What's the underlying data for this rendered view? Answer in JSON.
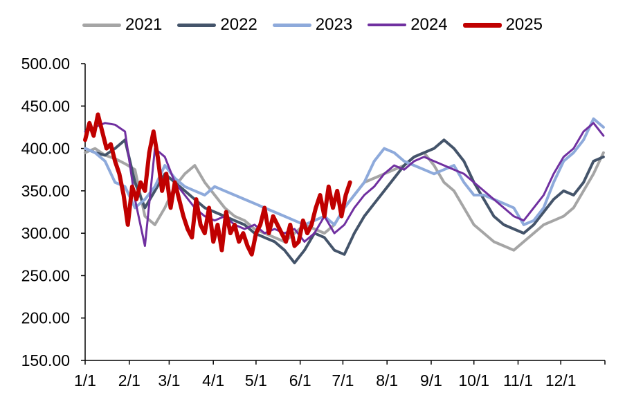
{
  "chart_data": {
    "type": "line",
    "title": "",
    "xlabel": "",
    "ylabel": "",
    "ylim": [
      150,
      500
    ],
    "yticks": [
      "150.00",
      "200.00",
      "250.00",
      "300.00",
      "350.00",
      "400.00",
      "450.00",
      "500.00"
    ],
    "ytick_values": [
      150,
      200,
      250,
      300,
      350,
      400,
      450,
      500
    ],
    "xticks": [
      "1/1",
      "2/1",
      "3/1",
      "4/1",
      "5/1",
      "6/1",
      "7/1",
      "8/1",
      "9/1",
      "10/1",
      "11/1",
      "12/1"
    ],
    "xtick_days": [
      0,
      31,
      59,
      90,
      120,
      151,
      181,
      212,
      243,
      273,
      304,
      334
    ],
    "x_unit": "day of year",
    "legend_position": "top",
    "grid": false,
    "series": [
      {
        "name": "2021",
        "color": "#a5a5a5",
        "width": 4,
        "x": [
          0,
          7,
          14,
          21,
          28,
          35,
          42,
          49,
          56,
          63,
          70,
          77,
          84,
          91,
          98,
          105,
          112,
          119,
          126,
          133,
          140,
          147,
          154,
          161,
          168,
          175,
          182,
          189,
          196,
          203,
          210,
          217,
          224,
          231,
          238,
          245,
          252,
          259,
          266,
          273,
          280,
          287,
          294,
          301,
          308,
          315,
          322,
          329,
          336,
          343,
          350,
          357,
          364
        ],
        "y": [
          395,
          400,
          392,
          388,
          382,
          375,
          320,
          310,
          330,
          355,
          370,
          380,
          360,
          345,
          330,
          320,
          315,
          305,
          300,
          295,
          290,
          300,
          310,
          305,
          300,
          310,
          330,
          345,
          360,
          365,
          370,
          375,
          380,
          390,
          395,
          380,
          360,
          350,
          330,
          310,
          300,
          290,
          285,
          280,
          290,
          300,
          310,
          315,
          320,
          330,
          350,
          370,
          395
        ]
      },
      {
        "name": "2022",
        "color": "#44546a",
        "width": 4,
        "x": [
          0,
          7,
          14,
          21,
          28,
          35,
          42,
          49,
          56,
          63,
          70,
          77,
          84,
          91,
          98,
          105,
          112,
          119,
          126,
          133,
          140,
          147,
          154,
          161,
          168,
          175,
          182,
          189,
          196,
          203,
          210,
          217,
          224,
          231,
          238,
          245,
          252,
          259,
          266,
          273,
          280,
          287,
          294,
          301,
          308,
          315,
          322,
          329,
          336,
          343,
          350,
          357,
          364
        ],
        "y": [
          400,
          395,
          392,
          400,
          410,
          360,
          330,
          350,
          370,
          360,
          350,
          340,
          330,
          325,
          320,
          315,
          310,
          300,
          295,
          290,
          280,
          265,
          280,
          300,
          295,
          280,
          275,
          300,
          320,
          335,
          350,
          365,
          380,
          390,
          395,
          400,
          410,
          400,
          385,
          360,
          340,
          320,
          310,
          305,
          300,
          310,
          325,
          340,
          350,
          345,
          360,
          385,
          390
        ]
      },
      {
        "name": "2023",
        "color": "#8eaadb",
        "width": 4,
        "x": [
          0,
          7,
          14,
          21,
          28,
          35,
          42,
          49,
          56,
          63,
          70,
          77,
          84,
          91,
          98,
          105,
          112,
          119,
          126,
          133,
          140,
          147,
          154,
          161,
          168,
          175,
          182,
          189,
          196,
          203,
          210,
          217,
          224,
          231,
          238,
          245,
          252,
          259,
          266,
          273,
          280,
          287,
          294,
          301,
          308,
          315,
          322,
          329,
          336,
          343,
          350,
          357,
          364
        ],
        "y": [
          400,
          395,
          385,
          360,
          355,
          330,
          340,
          355,
          380,
          365,
          355,
          350,
          345,
          355,
          350,
          345,
          340,
          335,
          330,
          325,
          320,
          315,
          310,
          315,
          320,
          310,
          330,
          345,
          360,
          385,
          400,
          395,
          385,
          380,
          375,
          370,
          375,
          380,
          360,
          345,
          345,
          340,
          335,
          330,
          310,
          315,
          330,
          360,
          385,
          395,
          410,
          435,
          425
        ]
      },
      {
        "name": "2024",
        "color": "#7030a0",
        "width": 3,
        "x": [
          0,
          7,
          14,
          21,
          28,
          35,
          42,
          49,
          56,
          63,
          70,
          77,
          84,
          91,
          98,
          105,
          112,
          119,
          126,
          133,
          140,
          147,
          154,
          161,
          168,
          175,
          182,
          189,
          196,
          203,
          210,
          217,
          224,
          231,
          238,
          245,
          252,
          259,
          266,
          273,
          280,
          287,
          294,
          301,
          308,
          315,
          322,
          329,
          336,
          343,
          350,
          357,
          364
        ],
        "y": [
          420,
          425,
          430,
          428,
          420,
          340,
          285,
          400,
          390,
          360,
          345,
          330,
          320,
          315,
          320,
          310,
          305,
          310,
          300,
          305,
          300,
          305,
          290,
          300,
          320,
          300,
          310,
          330,
          345,
          355,
          370,
          380,
          375,
          385,
          390,
          385,
          380,
          375,
          370,
          360,
          350,
          340,
          330,
          320,
          315,
          330,
          345,
          370,
          390,
          400,
          420,
          430,
          415
        ]
      },
      {
        "name": "2025",
        "color": "#c00000",
        "width": 6,
        "x": [
          0,
          3,
          6,
          9,
          12,
          15,
          18,
          21,
          24,
          27,
          30,
          33,
          36,
          39,
          42,
          45,
          48,
          51,
          54,
          57,
          60,
          63,
          66,
          69,
          72,
          75,
          78,
          81,
          84,
          87,
          90,
          93,
          96,
          99,
          102,
          105,
          108,
          111,
          114,
          117,
          120,
          123,
          126,
          129,
          132,
          135,
          138,
          141,
          144,
          147,
          150,
          153,
          156,
          159,
          162,
          165,
          168,
          171,
          174,
          177,
          180,
          183,
          186
        ],
        "y": [
          410,
          430,
          415,
          440,
          420,
          400,
          405,
          385,
          370,
          345,
          310,
          355,
          340,
          360,
          350,
          395,
          420,
          390,
          350,
          370,
          330,
          360,
          340,
          320,
          305,
          295,
          340,
          310,
          300,
          330,
          290,
          310,
          280,
          325,
          300,
          310,
          290,
          300,
          285,
          275,
          300,
          310,
          330,
          300,
          320,
          310,
          300,
          290,
          310,
          285,
          290,
          315,
          300,
          310,
          330,
          345,
          320,
          355,
          330,
          350,
          320,
          345,
          360
        ]
      }
    ]
  }
}
